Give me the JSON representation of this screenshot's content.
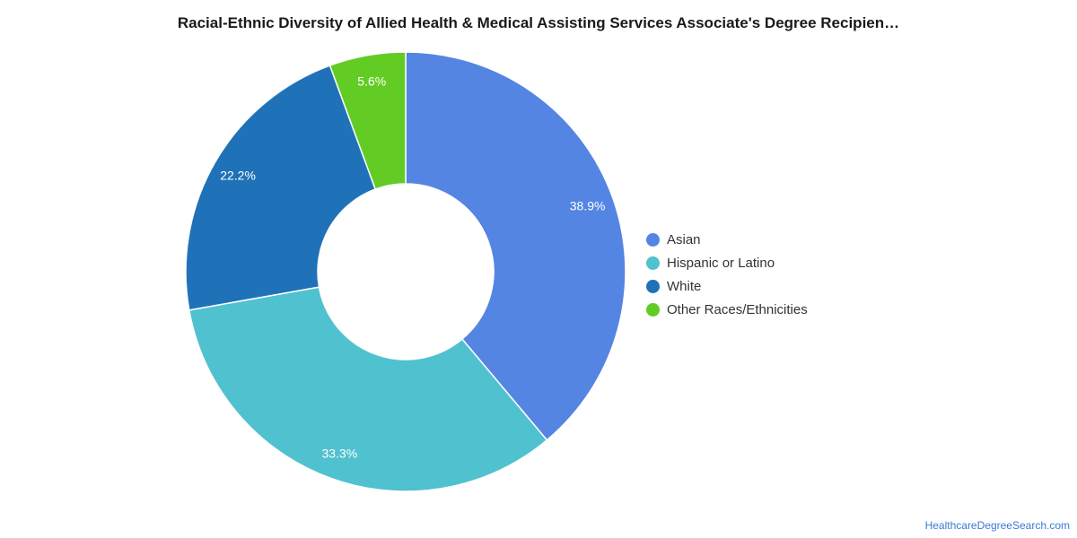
{
  "chart_data": {
    "type": "pie",
    "variant": "donut",
    "title": "Racial-Ethnic Diversity of Allied Health & Medical Assisting Services Associate's Degree Recipien…",
    "categories": [
      "Asian",
      "Hispanic or Latino",
      "White",
      "Other Races/Ethnicities"
    ],
    "values": [
      38.9,
      33.3,
      22.2,
      5.6
    ],
    "value_labels": [
      "38.9%",
      "33.3%",
      "22.2%",
      "5.6%"
    ],
    "colors": [
      "#5485e3",
      "#50c1cf",
      "#1f72b8",
      "#62cc24"
    ],
    "legend_position": "right"
  },
  "legend": {
    "items": [
      {
        "label": "Asian",
        "color": "#5485e3"
      },
      {
        "label": "Hispanic or Latino",
        "color": "#50c1cf"
      },
      {
        "label": "White",
        "color": "#1f72b8"
      },
      {
        "label": "Other Races/Ethnicities",
        "color": "#62cc24"
      }
    ]
  },
  "footer": {
    "source_link": "HealthcareDegreeSearch.com"
  }
}
